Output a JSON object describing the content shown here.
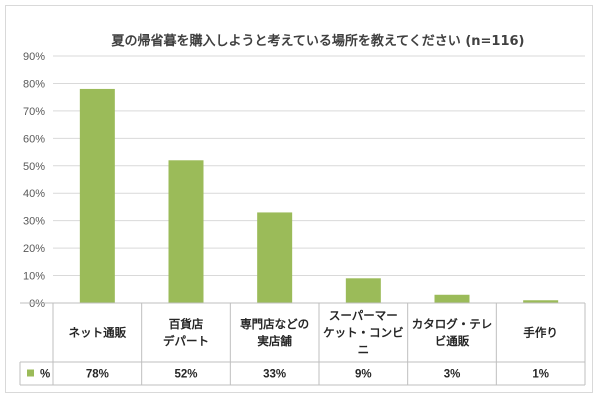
{
  "chart_data": {
    "type": "bar",
    "title": "夏の帰省暮を購入しようと考えている場所を教えてください (n=116)",
    "categories": [
      [
        "ネット通販"
      ],
      [
        "百貨店",
        "デパート"
      ],
      [
        "専門店などの",
        "実店舗"
      ],
      [
        "スーパーマー",
        "ケット・コンビ",
        "ニ"
      ],
      [
        "カタログ・テレ",
        "ビ通販"
      ],
      [
        "手作り"
      ]
    ],
    "series": [
      {
        "name": "%",
        "values": [
          78,
          52,
          33,
          9,
          3,
          1
        ],
        "labels": [
          "78%",
          "52%",
          "33%",
          "9%",
          "3%",
          "1%"
        ],
        "color": "#9bbb59"
      }
    ],
    "yticks": [
      "0%",
      "10%",
      "20%",
      "30%",
      "40%",
      "50%",
      "60%",
      "70%",
      "80%",
      "90%"
    ],
    "ylim": [
      0,
      90
    ],
    "grid": true,
    "legend": "data-table-left"
  }
}
